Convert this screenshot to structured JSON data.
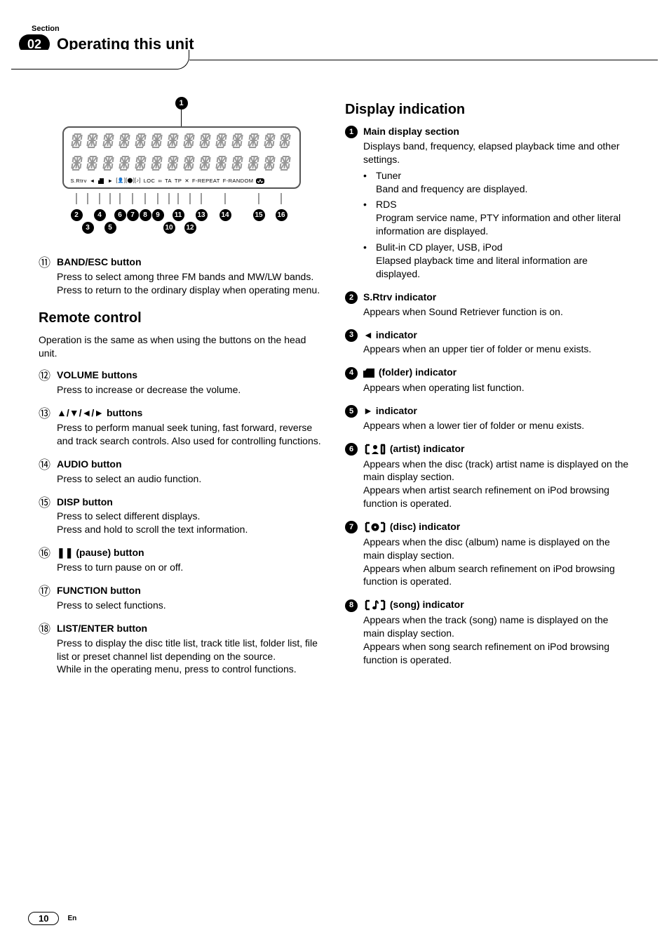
{
  "section_label": "Section",
  "section_number": "02",
  "chapter_title": "Operating this unit",
  "diagram": {
    "status_text_left": "S.Rtrv",
    "status_items": [
      "LOC",
      "TA",
      "TP",
      "F-REPEAT",
      "F-RANDOM"
    ],
    "top_callout": "1",
    "callouts_line1": [
      "2",
      "4",
      "6",
      "7",
      "8",
      "9",
      "11",
      "13",
      "14",
      "15",
      "16"
    ],
    "callouts_line2": [
      "3",
      "5",
      "10",
      "12"
    ]
  },
  "left_col": {
    "items_top": [
      {
        "num": "b",
        "title": "BAND/ESC button",
        "body": "Press to select among three FM bands and MW/LW bands.\nPress to return to the ordinary display when operating menu."
      }
    ],
    "heading": "Remote control",
    "intro": "Operation is the same as when using the buttons on the head unit.",
    "items": [
      {
        "num": "c",
        "title": "VOLUME buttons",
        "body": "Press to increase or decrease the volume."
      },
      {
        "num": "d",
        "title": "▲/▼/◄/► buttons",
        "body": "Press to perform manual seek tuning, fast forward, reverse and track search controls. Also used for controlling functions."
      },
      {
        "num": "e",
        "title": "AUDIO button",
        "body": "Press to select an audio function."
      },
      {
        "num": "f",
        "title": "DISP button",
        "body": "Press to select different displays.\nPress and hold to scroll the text information."
      },
      {
        "num": "g",
        "title": "❚❚ (pause) button",
        "body": "Press to turn pause on or off."
      },
      {
        "num": "h",
        "title": "FUNCTION button",
        "body": "Press to select functions."
      },
      {
        "num": "i",
        "title": "LIST/ENTER button",
        "body": "Press to display the disc title list, track title list, folder list, file list or preset channel list depending on the source.\nWhile in the operating menu, press to control functions."
      }
    ]
  },
  "right_col": {
    "heading": "Display indication",
    "items": [
      {
        "num": "1",
        "title": "Main display section",
        "body": "Displays band, frequency, elapsed playback time and other settings.",
        "bullets": [
          {
            "head": "Tuner",
            "body": "Band and frequency are displayed."
          },
          {
            "head": "RDS",
            "body": "Program service name, PTY information and other literal information are displayed."
          },
          {
            "head": "Bulit-in CD player, USB, iPod",
            "body": "Elapsed playback time and literal information are displayed."
          }
        ]
      },
      {
        "num": "2",
        "title": "S.Rtrv indicator",
        "body": "Appears when Sound Retriever function is on."
      },
      {
        "num": "3",
        "title": "◄ indicator",
        "body": "Appears when an upper tier of folder or menu exists."
      },
      {
        "num": "4",
        "icon": "folder",
        "title_suffix": "(folder) indicator",
        "body": "Appears when operating list function."
      },
      {
        "num": "5",
        "title": "► indicator",
        "body": "Appears when a lower tier of folder or menu exists."
      },
      {
        "num": "6",
        "icon": "artist",
        "title_suffix": "(artist) indicator",
        "body": "Appears when the disc (track) artist name is displayed on the main display section.\nAppears when artist search refinement on iPod browsing function is operated."
      },
      {
        "num": "7",
        "icon": "disc",
        "title_suffix": "(disc) indicator",
        "body": "Appears when the disc (album) name is displayed on the main display section.\nAppears when album search refinement on iPod browsing function is operated."
      },
      {
        "num": "8",
        "icon": "song",
        "title_suffix": "(song) indicator",
        "body": "Appears when the track (song) name is displayed on the main display section.\nAppears when song search refinement on iPod browsing function is operated."
      }
    ]
  },
  "page_number": "10",
  "lang": "En",
  "ring_map": {
    "b": "⑪",
    "c": "⑫",
    "d": "⑬",
    "e": "⑭",
    "f": "⑮",
    "g": "⑯",
    "h": "⑰",
    "i": "⑱"
  }
}
